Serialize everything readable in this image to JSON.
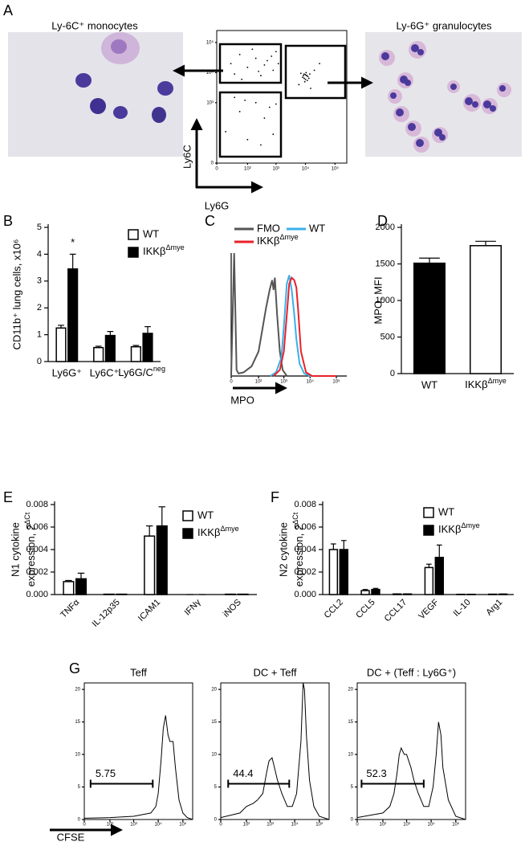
{
  "chart_data": [
    {
      "panel": "A",
      "type": "scatter",
      "labels": [
        "Ly-6C⁺ monocytes",
        "Ly-6G⁺ granulocytes"
      ],
      "xlabel": "Ly6G",
      "ylabel": "Ly6C",
      "color": "#000000",
      "xscale": "logicle",
      "yscale": "logicle",
      "xlim": [
        0,
        250000
      ],
      "ylim": [
        0,
        250000
      ],
      "xticks": [
        0,
        {
          "value": 100,
          "label": "10²"
        },
        {
          "value": 1000,
          "label": "10³"
        },
        {
          "value": 10000,
          "label": "10⁴"
        },
        {
          "value": 100000,
          "label": "10⁵"
        }
      ],
      "yticks": [
        0,
        {
          "value": 1000,
          "label": "10³"
        },
        {
          "value": 10000,
          "label": "10⁴"
        },
        {
          "value": 100000,
          "label": "10⁵"
        }
      ],
      "x": [
        20,
        50,
        100,
        200,
        300,
        500,
        800,
        1000,
        30,
        150,
        400,
        700,
        60,
        250,
        1200,
        8000,
        9000,
        10000,
        11000,
        12000,
        9500,
        10500,
        8500,
        13000,
        7000,
        11500,
        10000,
        14000,
        9000,
        20000,
        6000,
        30000,
        15000,
        10,
        50,
        100,
        200,
        400,
        800,
        30,
        600,
        1500,
        300,
        80,
        1000
      ],
      "y": [
        20000,
        40000,
        15000,
        30000,
        8000,
        25000,
        12000,
        50000,
        9000,
        60000,
        18000,
        35000,
        6000,
        11000,
        20000,
        7000,
        9000,
        6000,
        8000,
        7500,
        5000,
        10000,
        8000,
        6500,
        9500,
        5500,
        8500,
        9000,
        6500,
        12000,
        4000,
        20000,
        3000,
        100,
        500,
        50,
        1000,
        300,
        80,
        1500,
        700,
        200,
        30,
        1200,
        900
      ]
    },
    {
      "panel": "B",
      "type": "grouped_bar",
      "ylabel": "CD11b⁺ lung cells, x10⁶",
      "categories": [
        "Ly6G⁺",
        "Ly6C⁺",
        {
          "text": "Ly6G/C",
          "sup": "neg"
        }
      ],
      "series": [
        {
          "name": "WT",
          "color": "#ffffff",
          "values": [
            1.25,
            0.52,
            0.55
          ],
          "errors": [
            0.1,
            0.05,
            0.05
          ]
        },
        {
          "name": {
            "text": "IKKβ",
            "sup": "Δmye"
          },
          "color": "#000000",
          "values": [
            3.45,
            0.97,
            1.05
          ],
          "errors": [
            0.55,
            0.15,
            0.25
          ]
        }
      ],
      "annotations": [
        {
          "text": "*",
          "category": 0,
          "series": 1
        }
      ],
      "ylim": [
        0,
        5
      ],
      "yticks": [
        0,
        1,
        2,
        3,
        4,
        5
      ]
    },
    {
      "panel": "C",
      "type": "line",
      "xlabel": "MPO",
      "xscale": "logicle",
      "xlim": [
        0,
        250000
      ],
      "ylim": [
        0,
        100
      ],
      "xticks": [
        0,
        {
          "value": 100,
          "label": "10²"
        },
        {
          "value": 1000,
          "label": "10³"
        },
        {
          "value": 10000,
          "label": "10⁴"
        },
        {
          "value": 100000,
          "label": "10⁵"
        }
      ],
      "series": [
        {
          "name": "FMO",
          "color": "#555555",
          "x": [
            0,
            3,
            6,
            9,
            20,
            50,
            100,
            150,
            200,
            280,
            350,
            400,
            450,
            550,
            700,
            900,
            1300
          ],
          "values": [
            0,
            100,
            5,
            2,
            3,
            8,
            20,
            40,
            55,
            70,
            78,
            70,
            80,
            50,
            20,
            5,
            0
          ]
        },
        {
          "name": "WT",
          "color": "#3ab0e8",
          "x": [
            300,
            500,
            800,
            1000,
            1300,
            1600,
            2000,
            2500,
            3000,
            4000,
            6000,
            10000,
            100000
          ],
          "values": [
            0,
            3,
            15,
            40,
            75,
            82,
            70,
            50,
            30,
            10,
            2,
            0,
            0
          ]
        },
        {
          "name": {
            "text": "IKKβ",
            "sup": "Δmye"
          },
          "color": "#e8202a",
          "x": [
            400,
            700,
            1000,
            1300,
            1600,
            2000,
            2500,
            3000,
            3500,
            4500,
            7000,
            12000,
            100000
          ],
          "values": [
            0,
            5,
            20,
            50,
            75,
            80,
            78,
            72,
            55,
            20,
            3,
            0,
            0
          ]
        }
      ]
    },
    {
      "panel": "D",
      "type": "bar",
      "ylabel": "MPO, MFI",
      "categories": [
        "WT",
        {
          "text": "IKKβ",
          "sup": "Δmye"
        }
      ],
      "values": [
        1510,
        1750
      ],
      "errors": [
        70,
        60
      ],
      "colors": [
        "#000000",
        "#ffffff"
      ],
      "ylim": [
        0,
        2000
      ],
      "yticks": [
        0,
        500,
        1000,
        1500,
        2000
      ]
    },
    {
      "panel": "E",
      "type": "grouped_bar",
      "ylabel": [
        "N1 cytokine",
        {
          "text": "expression, 2",
          "sup": "ΔCt"
        }
      ],
      "categories": [
        "TNFα",
        "IL-12p35",
        "ICAM1",
        "IFNγ",
        "iNOS"
      ],
      "series": [
        {
          "name": "WT",
          "color": "#ffffff",
          "values": [
            0.00115,
            3e-05,
            0.0052,
            0,
            3e-05
          ],
          "errors": [
            0.0001,
            0,
            0.0009,
            0,
            0
          ]
        },
        {
          "name": {
            "text": "IKKβ",
            "sup": "Δmye"
          },
          "color": "#000000",
          "values": [
            0.0014,
            3e-05,
            0.0061,
            0,
            3e-05
          ],
          "errors": [
            0.0005,
            0,
            0.0017,
            0,
            0
          ]
        }
      ],
      "ylim": [
        0,
        0.008
      ],
      "yticks": [
        {
          "value": 0,
          "label": "0.000"
        },
        {
          "value": 0.002,
          "label": "0.002"
        },
        {
          "value": 0.004,
          "label": "0.004"
        },
        {
          "value": 0.006,
          "label": "0.006"
        },
        {
          "value": 0.008,
          "label": "0.008"
        }
      ]
    },
    {
      "panel": "F",
      "type": "grouped_bar",
      "ylabel": [
        "N2 cytokine",
        {
          "text": "expression, 2",
          "sup": "ΔCt"
        }
      ],
      "categories": [
        "CCL2",
        "CCL5",
        "CCL17",
        "VEGF",
        "IL-10",
        "Arg1"
      ],
      "series": [
        {
          "name": "WT",
          "color": "#ffffff",
          "values": [
            0.004,
            0.00035,
            5e-05,
            0.0024,
            2e-05,
            3e-05
          ],
          "errors": [
            0.0005,
            0.0001,
            0,
            0.0003,
            0,
            0
          ]
        },
        {
          "name": {
            "text": "IKKβ",
            "sup": "Δmye"
          },
          "color": "#000000",
          "values": [
            0.004,
            0.00045,
            5e-05,
            0.0033,
            2e-05,
            4e-05
          ],
          "errors": [
            0.0008,
            0.0001,
            0,
            0.0011,
            0,
            0
          ]
        }
      ],
      "ylim": [
        0,
        0.008
      ],
      "yticks": [
        {
          "value": 0,
          "label": "0.000"
        },
        {
          "value": 0.002,
          "label": "0.002"
        },
        {
          "value": 0.004,
          "label": "0.004"
        },
        {
          "value": 0.006,
          "label": "0.006"
        },
        {
          "value": 0.008,
          "label": "0.008"
        }
      ]
    },
    {
      "panel": "G",
      "type": "line",
      "title": "Teff",
      "xlabel": "CFSE",
      "xscale": "logicle",
      "xlim": [
        0,
        250000
      ],
      "ylim": [
        0,
        21
      ],
      "xticks": [
        0,
        {
          "value": 100,
          "label": "10²"
        },
        {
          "value": 1000,
          "label": "10³"
        },
        {
          "value": 10000,
          "label": "10⁴"
        },
        {
          "value": 100000,
          "label": "10⁵"
        }
      ],
      "yticks": [
        0,
        5,
        10,
        15,
        20
      ],
      "gate": {
        "x": [
          8,
          6000
        ],
        "y": 5.5,
        "label": 5.75
      },
      "series": [
        {
          "color": "#000000",
          "x": [
            0,
            100,
            1000,
            5000,
            8000,
            10000,
            13000,
            16000,
            20000,
            25000,
            30000,
            40000,
            50000,
            70000,
            100000,
            150000,
            250000
          ],
          "values": [
            0.2,
            0.3,
            0.5,
            1,
            2,
            4,
            9,
            14,
            16,
            13,
            12,
            12,
            8,
            3,
            1,
            0.3,
            0
          ]
        }
      ]
    },
    {
      "type": "line",
      "title": "DC + Teff",
      "xscale": "logicle",
      "xlim": [
        0,
        250000
      ],
      "ylim": [
        0,
        21
      ],
      "xticks": [
        0,
        {
          "value": 100,
          "label": "10²"
        },
        {
          "value": 1000,
          "label": "10³"
        },
        {
          "value": 10000,
          "label": "10⁴"
        },
        {
          "value": 100000,
          "label": "10⁵"
        }
      ],
      "yticks": [
        0,
        5,
        10,
        15,
        20
      ],
      "gate": {
        "x": [
          10,
          6000
        ],
        "y": 5.5,
        "label": 44.4
      },
      "series": [
        {
          "color": "#000000",
          "x": [
            0,
            50,
            100,
            200,
            300,
            500,
            700,
            900,
            1200,
            1500,
            2000,
            3000,
            5000,
            8000,
            12000,
            18000,
            22000,
            25000,
            30000,
            40000,
            60000,
            100000,
            250000
          ],
          "values": [
            0.3,
            1,
            2,
            2.5,
            3,
            4,
            7,
            9,
            9.5,
            8,
            6,
            4,
            2,
            2,
            4,
            12,
            21,
            20,
            13,
            6,
            2,
            0.5,
            0
          ]
        }
      ]
    },
    {
      "type": "line",
      "title": "DC + (Teff : Ly6G⁺)",
      "xscale": "logicle",
      "xlim": [
        0,
        250000
      ],
      "ylim": [
        0,
        21
      ],
      "xticks": [
        0,
        {
          "value": 100,
          "label": "10²"
        },
        {
          "value": 1000,
          "label": "10³"
        },
        {
          "value": 10000,
          "label": "10⁴"
        },
        {
          "value": 100000,
          "label": "10⁵"
        }
      ],
      "yticks": [
        0,
        5,
        10,
        15,
        20
      ],
      "gate": {
        "x": [
          5,
          5000
        ],
        "y": 5.5,
        "label": 52.3
      },
      "series": [
        {
          "color": "#000000",
          "x": [
            0,
            100,
            200,
            300,
            400,
            500,
            600,
            800,
            1000,
            1500,
            2000,
            3000,
            5000,
            8000,
            12000,
            16000,
            20000,
            25000,
            30000,
            50000,
            100000,
            250000
          ],
          "values": [
            0.3,
            1,
            2,
            4,
            7,
            10,
            11,
            10,
            10,
            8,
            6,
            4,
            2,
            2,
            5,
            10,
            15,
            13,
            8,
            3,
            0.5,
            0
          ]
        }
      ]
    }
  ]
}
